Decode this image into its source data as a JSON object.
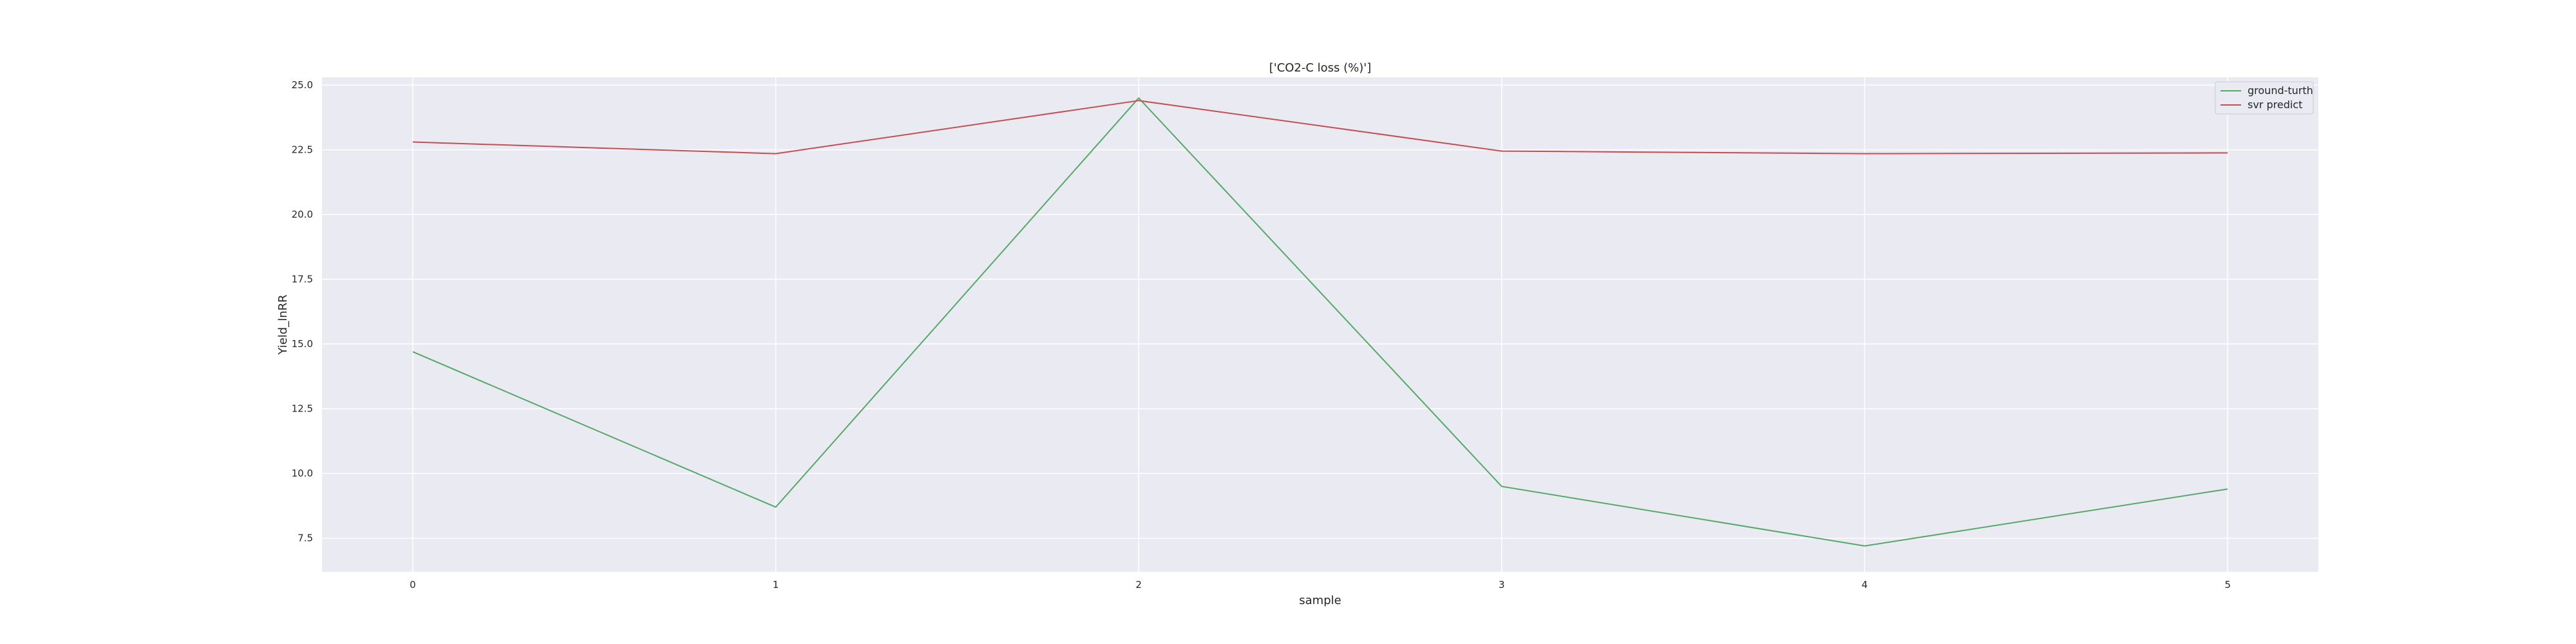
{
  "chart_data": {
    "type": "line",
    "title": "['CO2-C loss (%)']",
    "xlabel": "sample",
    "ylabel": "Yield_lnRR",
    "x": [
      0,
      1,
      2,
      3,
      4,
      5
    ],
    "x_ticks": [
      "0",
      "1",
      "2",
      "3",
      "4",
      "5"
    ],
    "xlim": [
      -0.25,
      5.25
    ],
    "y_ticks": [
      "7.5",
      "10.0",
      "12.5",
      "15.0",
      "17.5",
      "20.0",
      "22.5",
      "25.0"
    ],
    "ylim": [
      6.2,
      25.3
    ],
    "grid": true,
    "legend_position": "top-right",
    "series": [
      {
        "name": "ground-turth",
        "color": "#55a868",
        "values": [
          14.7,
          8.7,
          24.5,
          9.5,
          7.2,
          9.4
        ]
      },
      {
        "name": "svr predict",
        "color": "#c44e52",
        "values": [
          22.8,
          22.35,
          24.4,
          22.45,
          22.35,
          22.38
        ]
      }
    ]
  }
}
